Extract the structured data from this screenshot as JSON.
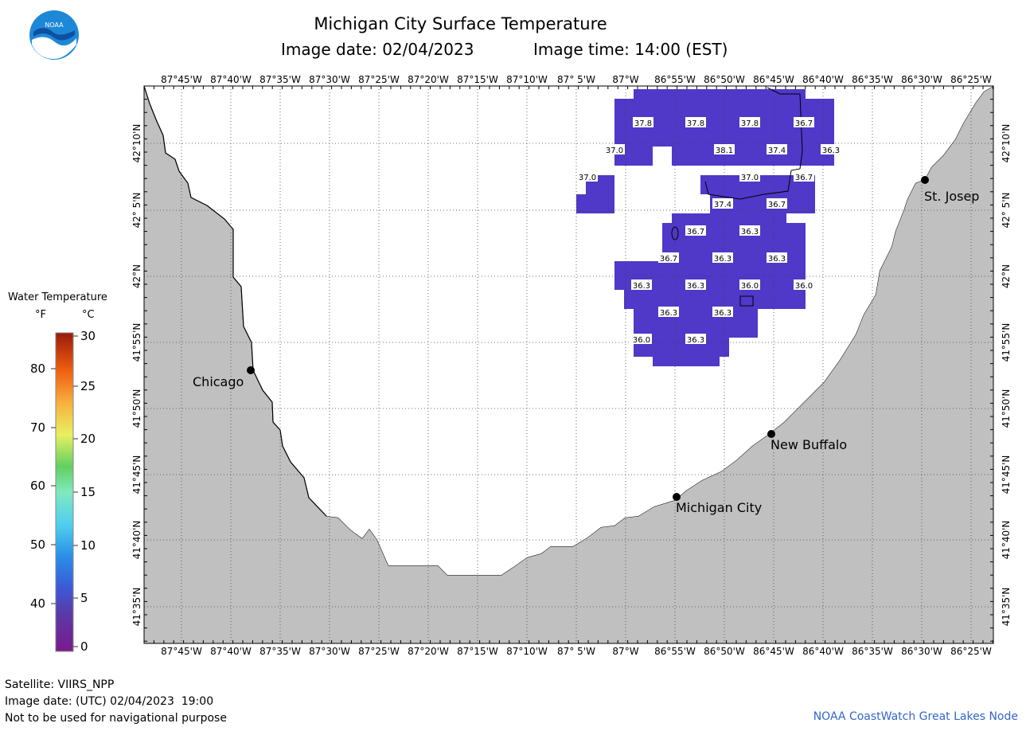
{
  "header": {
    "title": "Michigan City Surface Temperature",
    "image_date": "Image date: 02/04/2023",
    "image_time": "Image time: 14:00 (EST)",
    "logo_text": "NOAA"
  },
  "axes": {
    "lon_labels": [
      "87°45'W",
      "87°40'W",
      "87°35'W",
      "87°30'W",
      "87°25'W",
      "87°20'W",
      "87°15'W",
      "87°10'W",
      "87° 5'W",
      "87°W",
      "86°55'W",
      "86°50'W",
      "86°45'W",
      "86°40'W",
      "86°35'W",
      "86°30'W",
      "86°25'W"
    ],
    "lat_labels": [
      "42°10'N",
      "42° 5'N",
      "42°N",
      "41°55'N",
      "41°50'N",
      "41°45'N",
      "41°40'N",
      "41°35'N"
    ]
  },
  "cities": [
    {
      "name": "Chicago",
      "label": "Chicago"
    },
    {
      "name": "St. Josep",
      "label": "St. Josep"
    },
    {
      "name": "New Buffalo",
      "label": "New Buffalo"
    },
    {
      "name": "Michigan City",
      "label": "Michigan City"
    }
  ],
  "temperatures": [
    "37.8",
    "37.8",
    "37.8",
    "36.7",
    "37.0",
    "38.1",
    "37.4",
    "36.3",
    "37.0",
    "37.0",
    "36.7",
    "37.4",
    "36.7",
    "36.7",
    "36.3",
    "36.7",
    "36.3",
    "36.3",
    "36.3",
    "36.3",
    "36.0",
    "36.0",
    "36.3",
    "36.3",
    "36.0",
    "36.3"
  ],
  "legend": {
    "title": "Water Temperature",
    "unit_f": "°F",
    "unit_c": "°C",
    "f_ticks": [
      "80",
      "70",
      "60",
      "50",
      "40"
    ],
    "c_ticks": [
      "30",
      "25",
      "20",
      "15",
      "10",
      "5",
      "0"
    ]
  },
  "footer": {
    "satellite": "Satellite: VIIRS_NPP",
    "utc_date": "Image date: (UTC) 02/04/2023  19:00",
    "disclaimer": "Not to be used for navigational purpose",
    "credit": "NOAA CoastWatch Great Lakes Node"
  },
  "colors": {
    "land": "#c0c0c0",
    "water_data": "#5038c8",
    "logo_blue": "#1e88d8"
  }
}
